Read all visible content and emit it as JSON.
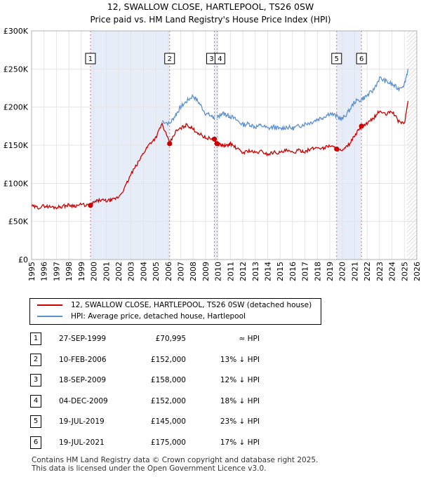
{
  "chart_data": {
    "type": "line",
    "title": "12, SWALLOW CLOSE, HARTLEPOOL, TS26 0SW",
    "subtitle": "Price paid vs. HM Land Registry's House Price Index (HPI)",
    "xlim": [
      1995,
      2026
    ],
    "ylim": [
      0,
      300000
    ],
    "x_ticks": [
      "1995",
      "1996",
      "1997",
      "1998",
      "1999",
      "2000",
      "2001",
      "2002",
      "2003",
      "2004",
      "2005",
      "2006",
      "2007",
      "2008",
      "2009",
      "2010",
      "2011",
      "2012",
      "2013",
      "2014",
      "2015",
      "2016",
      "2017",
      "2018",
      "2019",
      "2020",
      "2021",
      "2022",
      "2023",
      "2024",
      "2025",
      "2026"
    ],
    "y_ticks": [
      {
        "value": 0,
        "label": "£0"
      },
      {
        "value": 50000,
        "label": "£50K"
      },
      {
        "value": 100000,
        "label": "£100K"
      },
      {
        "value": 150000,
        "label": "£150K"
      },
      {
        "value": 200000,
        "label": "£200K"
      },
      {
        "value": 250000,
        "label": "£250K"
      },
      {
        "value": 300000,
        "label": "£300K"
      }
    ],
    "shaded_periods": [
      [
        1999.74,
        2006.11
      ],
      [
        2009.71,
        2009.93
      ],
      [
        2019.55,
        2021.55
      ]
    ],
    "series": [
      {
        "name": "12, SWALLOW CLOSE, HARTLEPOOL, TS26 0SW (detached house)",
        "color": "#cc0000",
        "x": [
          1995,
          1995.5,
          1996,
          1996.5,
          1997,
          1997.5,
          1998,
          1998.5,
          1999,
          1999.74,
          2000,
          2000.5,
          2001,
          2001.5,
          2002,
          2002.5,
          2003,
          2003.5,
          2004,
          2004.5,
          2005,
          2005.5,
          2006.11,
          2006.6,
          2007,
          2007.5,
          2008,
          2008.5,
          2009,
          2009.71,
          2009.93,
          2010.3,
          2010.7,
          2011,
          2011.5,
          2012,
          2012.5,
          2013,
          2013.5,
          2014,
          2014.5,
          2015,
          2015.5,
          2016,
          2016.5,
          2017,
          2017.5,
          2018,
          2018.5,
          2019,
          2019.55,
          2020,
          2020.5,
          2021,
          2021.55,
          2022,
          2022.5,
          2023,
          2023.5,
          2024,
          2024.5,
          2025,
          2025.3
        ],
        "values": [
          70000,
          68000,
          70500,
          69000,
          68500,
          70000,
          71500,
          70500,
          72000,
          70995,
          75000,
          78000,
          77000,
          78000,
          82000,
          94000,
          112000,
          125000,
          140000,
          152000,
          160000,
          178000,
          152000,
          168000,
          172000,
          177000,
          171000,
          165000,
          160000,
          158000,
          152000,
          150000,
          149000,
          152000,
          146000,
          140000,
          143000,
          140000,
          142000,
          138000,
          141000,
          140000,
          143000,
          140000,
          143000,
          142000,
          145000,
          147000,
          146000,
          150000,
          145000,
          142000,
          150000,
          162000,
          175000,
          178000,
          185000,
          195000,
          190000,
          195000,
          182000,
          178000,
          208000
        ]
      },
      {
        "name": "HPI: Average price, detached house, Hartlepool",
        "color": "#5b8fd0",
        "x": [
          2009.93,
          2010.3,
          2010.7,
          2011,
          2011.5,
          2012,
          2012.5,
          2013,
          2013.5,
          2014,
          2014.5,
          2015,
          2015.5,
          2016,
          2016.5,
          2017,
          2017.5,
          2018,
          2018.5,
          2019,
          2019.55,
          2020,
          2020.5,
          2021,
          2021.55,
          2022,
          2022.5,
          2023,
          2023.5,
          2024,
          2024.5,
          2025,
          2025.3
        ],
        "values": [
          185000,
          192000,
          190000,
          188000,
          183000,
          177000,
          178000,
          174000,
          176000,
          172000,
          174000,
          171000,
          174000,
          172000,
          175000,
          178000,
          180000,
          184000,
          187000,
          192000,
          188000,
          184000,
          194000,
          207000,
          210000,
          215000,
          222000,
          238000,
          234000,
          230000,
          224000,
          230000,
          250000
        ]
      }
    ],
    "series_hpi_early": {
      "x": [
        2005.5,
        2006.11,
        2006.6,
        2007,
        2007.5,
        2008,
        2008.5,
        2009,
        2009.5,
        2009.71
      ],
      "values": [
        182000,
        178000,
        190000,
        200000,
        208000,
        215000,
        205000,
        192000,
        188000,
        186000
      ]
    },
    "sale_markers": [
      {
        "id": "1",
        "x": 1999.74,
        "price": 70995
      },
      {
        "id": "2",
        "x": 2006.11,
        "price": 152000
      },
      {
        "id": "3",
        "x": 2009.71,
        "price": 158000
      },
      {
        "id": "4",
        "x": 2009.93,
        "price": 152000
      },
      {
        "id": "5",
        "x": 2019.55,
        "price": 145000
      },
      {
        "id": "6",
        "x": 2021.55,
        "price": 175000
      }
    ],
    "legend": [
      {
        "label": "12, SWALLOW CLOSE, HARTLEPOOL, TS26 0SW (detached house)",
        "color": "#cc0000"
      },
      {
        "label": "HPI: Average price, detached house, Hartlepool",
        "color": "#5b8fd0"
      }
    ]
  },
  "sales_table": [
    {
      "num": "1",
      "date": "27-SEP-1999",
      "price": "£70,995",
      "hpi": "≈ HPI"
    },
    {
      "num": "2",
      "date": "10-FEB-2006",
      "price": "£152,000",
      "hpi": "13% ↓ HPI"
    },
    {
      "num": "3",
      "date": "18-SEP-2009",
      "price": "£158,000",
      "hpi": "12% ↓ HPI"
    },
    {
      "num": "4",
      "date": "04-DEC-2009",
      "price": "£152,000",
      "hpi": "18% ↓ HPI"
    },
    {
      "num": "5",
      "date": "19-JUL-2019",
      "price": "£145,000",
      "hpi": "23% ↓ HPI"
    },
    {
      "num": "6",
      "date": "19-JUL-2021",
      "price": "£175,000",
      "hpi": "17% ↓ HPI"
    }
  ],
  "footer": {
    "line1": "Contains HM Land Registry data © Crown copyright and database right 2025.",
    "line2": "This data is licensed under the Open Government Licence v3.0."
  }
}
